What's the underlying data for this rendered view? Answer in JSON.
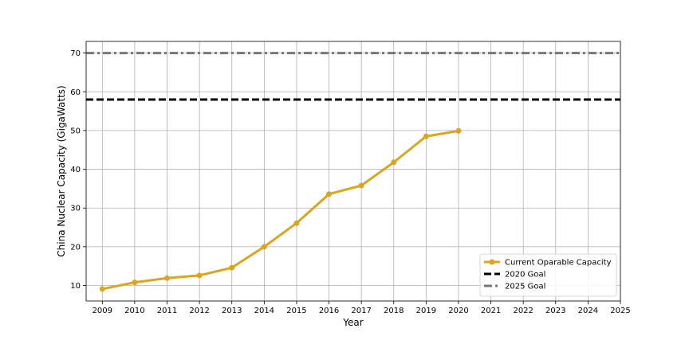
{
  "chart_data": {
    "type": "line",
    "title": "",
    "xlabel": "Year",
    "ylabel": "China Nuclear Capacity (GigaWatts)",
    "xlim": [
      2008.5,
      2025
    ],
    "ylim": [
      6,
      73
    ],
    "x_ticks": [
      2009,
      2010,
      2011,
      2012,
      2013,
      2014,
      2015,
      2016,
      2017,
      2018,
      2019,
      2020,
      2021,
      2022,
      2023,
      2024,
      2025
    ],
    "y_ticks": [
      10,
      20,
      30,
      40,
      50,
      60,
      70
    ],
    "grid": true,
    "legend_position": "bottom-right",
    "series": [
      {
        "name": "Current Oparable Capacity",
        "color": "#DAA520",
        "style": "solid-with-markers",
        "x": [
          2009,
          2010,
          2011,
          2012,
          2013,
          2014,
          2015,
          2016,
          2017,
          2018,
          2019,
          2020
        ],
        "values": [
          9.1,
          10.8,
          11.9,
          12.6,
          14.6,
          20.0,
          26.1,
          33.6,
          35.8,
          41.8,
          48.5,
          49.9
        ]
      }
    ],
    "reference_lines": [
      {
        "name": "2020 Goal",
        "y": 58,
        "color": "#000000",
        "style": "dashed"
      },
      {
        "name": "2025 Goal",
        "y": 70,
        "color": "#777777",
        "style": "dash-dot"
      }
    ]
  }
}
